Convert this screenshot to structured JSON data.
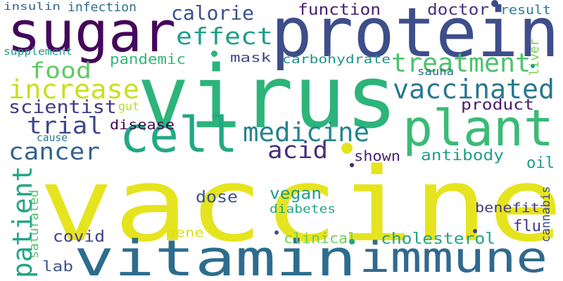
{
  "words": [
    {
      "text": "vaccine",
      "color": "#e6e41f"
    },
    {
      "text": "virus",
      "color": "#2db47a"
    },
    {
      "text": "protein",
      "color": "#3d4e8a"
    },
    {
      "text": "sugar",
      "color": "#44075b"
    },
    {
      "text": "vitamin",
      "color": "#2c6d8e"
    },
    {
      "text": "immune",
      "color": "#31698e"
    },
    {
      "text": "plant",
      "color": "#3bbb75"
    },
    {
      "text": "cell",
      "color": "#23a884"
    },
    {
      "text": "medicine",
      "color": "#25848e"
    },
    {
      "text": "vaccinated",
      "color": "#2a778e"
    },
    {
      "text": "treatment",
      "color": "#4cc26c"
    },
    {
      "text": "increase",
      "color": "#c8e020"
    },
    {
      "text": "effect",
      "color": "#1f9e89"
    },
    {
      "text": "calorie",
      "color": "#3b518b"
    },
    {
      "text": "food",
      "color": "#5ec962"
    },
    {
      "text": "cancer",
      "color": "#33638d"
    },
    {
      "text": "trial",
      "color": "#3f4889"
    },
    {
      "text": "scientist",
      "color": "#443a83"
    },
    {
      "text": "acid",
      "color": "#472d7b"
    },
    {
      "text": "oil",
      "color": "#1f9a8a"
    },
    {
      "text": "patient",
      "color": "#21a685"
    },
    {
      "text": "product",
      "color": "#481b6d"
    },
    {
      "text": "function",
      "color": "#482071"
    },
    {
      "text": "doctor",
      "color": "#46337f"
    },
    {
      "text": "result",
      "color": "#277f8e"
    },
    {
      "text": "infection",
      "color": "#2d708e"
    },
    {
      "text": "insulin",
      "color": "#355f8d"
    },
    {
      "text": "supplement",
      "color": "#1f9a8a"
    },
    {
      "text": "pandemic",
      "color": "#35b779"
    },
    {
      "text": "mask",
      "color": "#404688"
    },
    {
      "text": "carbohydrate",
      "color": "#21918c"
    },
    {
      "text": "liver",
      "color": "#7ad151"
    },
    {
      "text": "sauna",
      "color": "#2d708e"
    },
    {
      "text": "gut",
      "color": "#b5de2b"
    },
    {
      "text": "disease",
      "color": "#440154"
    },
    {
      "text": "cause",
      "color": "#29798e"
    },
    {
      "text": "shown",
      "color": "#482475"
    },
    {
      "text": "antibody",
      "color": "#1f9e89"
    },
    {
      "text": "dose",
      "color": "#3b528b"
    },
    {
      "text": "vegan",
      "color": "#1e9c89"
    },
    {
      "text": "diabetes",
      "color": "#21a685"
    },
    {
      "text": "benefit",
      "color": "#453882"
    },
    {
      "text": "cannabis",
      "color": "#3e4a89"
    },
    {
      "text": "flu",
      "color": "#453781"
    },
    {
      "text": "saturated",
      "color": "#54c568"
    },
    {
      "text": "gene",
      "color": "#d8e219"
    },
    {
      "text": "covid",
      "color": "#414487"
    },
    {
      "text": "clinical",
      "color": "#6ece58"
    },
    {
      "text": "cholesterol",
      "color": "#20a386"
    },
    {
      "text": "lab",
      "color": "#39568c"
    }
  ],
  "dots": [
    {
      "color": "#e6e41f"
    },
    {
      "color": "#3b528b"
    },
    {
      "color": "#2db47a"
    },
    {
      "color": "#1e9c89"
    },
    {
      "color": "#3e4a89"
    },
    {
      "color": "#414487"
    },
    {
      "color": "#22a785"
    },
    {
      "color": "#482475"
    }
  ]
}
